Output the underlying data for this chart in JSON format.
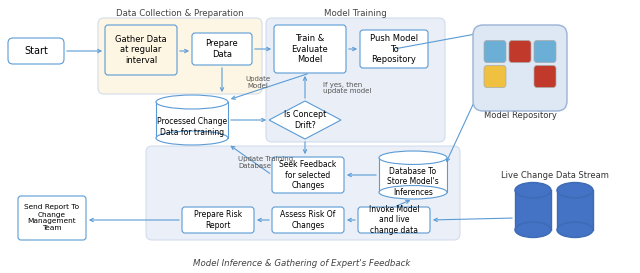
{
  "section_labels": {
    "data_collection": "Data Collection & Preparation",
    "model_training": "Model Training",
    "model_inference": "Model Inference & Gathering of Expert's Feedback"
  },
  "bg_color": "#ffffff",
  "box_border": "#5b9bd5",
  "group_bg_warm": "#fdf6e3",
  "group_bg_cool": "#e8eef7",
  "arrow_color": "#5b9bd5",
  "repo_colors": [
    [
      "#6baed6",
      "#c0392b",
      "#6baed6"
    ],
    [
      "#f0c040",
      "#ffffff",
      "#c0392b"
    ]
  ],
  "live_cyl_color": "#4472c4"
}
